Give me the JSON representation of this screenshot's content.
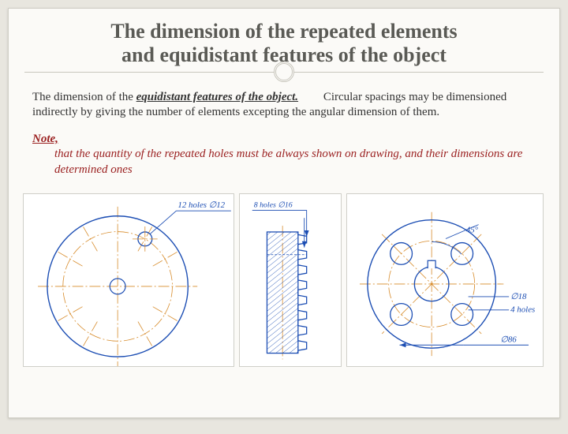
{
  "title_line1": "The dimension of the repeated elements",
  "title_line2": "and equidistant features of the object",
  "para1": {
    "lead": "The dimension of the ",
    "emph": "equidistant features of the object.",
    "rest": " Circular spacings may be dimensioned indirectly by giving the number of elements excepting the angular dimension of them."
  },
  "note": {
    "lead": "Note,",
    "rest": " that the quantity of the repeated holes must be always shown on drawing, and their dimensions are determined ones"
  },
  "figures": {
    "fig1": {
      "type": "engineering-drawing",
      "label": "12 holes ∅12",
      "outer_radius": 90,
      "bolt_circle_radius": 70,
      "hole_radius": 9,
      "n_holes": 12,
      "colors": {
        "outline": "#1b4db3",
        "axis": "#d78b2a",
        "text": "#1b4db3",
        "hatch": "#1b4db3"
      }
    },
    "fig2": {
      "type": "engineering-drawing",
      "label": "8 holes ∅16",
      "colors": {
        "outline": "#1b4db3",
        "axis": "#d78b2a",
        "hatch": "#1b4db3",
        "text": "#1b4db3"
      }
    },
    "fig3": {
      "type": "engineering-drawing",
      "angle_label": "45°",
      "hole_label": "∅18",
      "count_label": "4 holes",
      "diameter_label": "∅86",
      "outer_radius": 82,
      "inner_radius": 22,
      "bolt_circle_radius": 55,
      "hole_radius": 14,
      "n_holes": 4,
      "key_w": 10,
      "key_h": 8,
      "colors": {
        "outline": "#1b4db3",
        "axis": "#d78b2a",
        "text": "#1b4db3"
      }
    }
  }
}
